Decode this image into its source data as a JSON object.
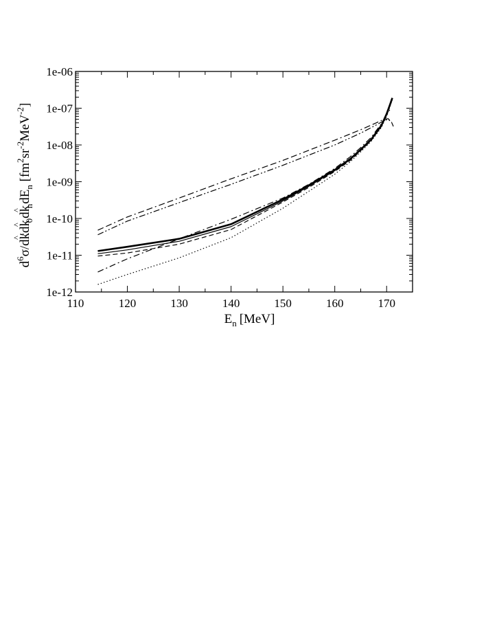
{
  "chart_data": {
    "type": "line",
    "title": "",
    "xlabel": {
      "base": "E",
      "sub": "n",
      "units": "[MeV]"
    },
    "ylabel": {
      "parts": [
        {
          "t": "d",
          "s": "n"
        },
        {
          "t": "6",
          "s": "sup"
        },
        {
          "t": "σ/d",
          "s": "n"
        },
        {
          "t": "k",
          "s": "n"
        },
        {
          "t": "^",
          "s": "hat"
        },
        {
          "t": "′d",
          "s": "n"
        },
        {
          "t": "k",
          "s": "n"
        },
        {
          "t": "^",
          "s": "hat"
        },
        {
          "t": "0",
          "s": "sub"
        },
        {
          "t": "d",
          "s": "n"
        },
        {
          "t": "k",
          "s": "n"
        },
        {
          "t": "^",
          "s": "hat"
        },
        {
          "t": "n",
          "s": "sub"
        },
        {
          "t": "dE",
          "s": "n"
        },
        {
          "t": "n",
          "s": "sub"
        },
        {
          "t": " [fm",
          "s": "n"
        },
        {
          "t": "2",
          "s": "sup"
        },
        {
          "t": "sr",
          "s": "n"
        },
        {
          "t": "-2",
          "s": "sup"
        },
        {
          "t": "MeV",
          "s": "n"
        },
        {
          "t": "-2",
          "s": "sup"
        },
        {
          "t": "]",
          "s": "n"
        }
      ]
    },
    "xlim": [
      110,
      175
    ],
    "ylim": [
      1e-12,
      1e-06
    ],
    "yscale": "log",
    "xticks": [
      110,
      120,
      130,
      140,
      150,
      160,
      170
    ],
    "xtick_labels": [
      "110",
      "120",
      "130",
      "140",
      "150",
      "160",
      "170"
    ],
    "yticks": [
      1e-12,
      1e-11,
      1e-10,
      1e-09,
      1e-08,
      1e-07,
      1e-06
    ],
    "ytick_labels": [
      "1e-12",
      "1e-11",
      "1e-10",
      "1e-09",
      "1e-08",
      "1e-07",
      "1e-06"
    ],
    "grid": false,
    "legend": "none",
    "series": [
      {
        "style": "solid-thick",
        "points": [
          [
            114.3,
            1.3e-11
          ],
          [
            120,
            1.7e-11
          ],
          [
            130,
            2.8e-11
          ],
          [
            140,
            7e-11
          ],
          [
            150,
            3.3e-10
          ],
          [
            155,
            8e-10
          ],
          [
            160,
            2.1e-09
          ],
          [
            163,
            4.2e-09
          ],
          [
            165,
            7.5e-09
          ],
          [
            167,
            1.4e-08
          ],
          [
            169,
            3.4e-08
          ],
          [
            170,
            7e-08
          ],
          [
            170.6,
            1.2e-07
          ],
          [
            171.1,
            1.9e-07
          ]
        ]
      },
      {
        "style": "solid-thin",
        "points": [
          [
            114.3,
            1.1e-11
          ],
          [
            120,
            1.4e-11
          ],
          [
            130,
            2.4e-11
          ],
          [
            140,
            6e-11
          ],
          [
            150,
            3e-10
          ],
          [
            155,
            7.5e-10
          ],
          [
            160,
            2e-09
          ],
          [
            163,
            4e-09
          ],
          [
            165,
            7.2e-09
          ],
          [
            167,
            1.35e-08
          ],
          [
            169,
            3.3e-08
          ],
          [
            170,
            6.8e-08
          ],
          [
            170.6,
            1.15e-07
          ],
          [
            171.1,
            1.8e-07
          ]
        ]
      },
      {
        "style": "dashed",
        "points": [
          [
            114.3,
            9.5e-12
          ],
          [
            120,
            1.15e-11
          ],
          [
            130,
            2e-11
          ],
          [
            140,
            5e-11
          ],
          [
            150,
            2.8e-10
          ],
          [
            155,
            7e-10
          ],
          [
            160,
            1.9e-09
          ],
          [
            163,
            3.8e-09
          ],
          [
            165,
            7e-09
          ],
          [
            167,
            1.3e-08
          ],
          [
            169,
            3.2e-08
          ],
          [
            170,
            6.5e-08
          ],
          [
            170.6,
            1.1e-07
          ],
          [
            171.1,
            1.75e-07
          ]
        ]
      },
      {
        "style": "dotted",
        "points": [
          [
            114.3,
            1.6e-12
          ],
          [
            120,
            3e-12
          ],
          [
            130,
            8.5e-12
          ],
          [
            140,
            3e-11
          ],
          [
            150,
            1.9e-10
          ],
          [
            155,
            5.5e-10
          ],
          [
            160,
            1.6e-09
          ],
          [
            163,
            3.5e-09
          ],
          [
            165,
            6.5e-09
          ],
          [
            167,
            1.25e-08
          ],
          [
            169,
            3e-08
          ],
          [
            170,
            6e-08
          ],
          [
            170.6,
            1.05e-07
          ],
          [
            171.1,
            1.7e-07
          ]
        ]
      },
      {
        "style": "dash-dot",
        "points": [
          [
            114.3,
            3.5e-12
          ],
          [
            120,
            8e-12
          ],
          [
            130,
            2.8e-11
          ],
          [
            140,
            9.5e-11
          ],
          [
            150,
            3.6e-10
          ],
          [
            155,
            8.5e-10
          ],
          [
            160,
            2.3e-09
          ],
          [
            163,
            4.8e-09
          ],
          [
            165,
            8.5e-09
          ],
          [
            167,
            1.6e-08
          ],
          [
            169,
            3.8e-08
          ],
          [
            170,
            6.5e-08
          ],
          [
            170.6,
            9e-08
          ]
        ]
      },
      {
        "style": "dash-dash-dot",
        "points": [
          [
            114.3,
            4.8e-11
          ],
          [
            120,
            1.1e-10
          ],
          [
            130,
            3.6e-10
          ],
          [
            140,
            1.2e-09
          ],
          [
            150,
            3.8e-09
          ],
          [
            160,
            1.35e-08
          ],
          [
            165,
            2.6e-08
          ],
          [
            168,
            4e-08
          ],
          [
            169.5,
            5e-08
          ],
          [
            170.3,
            5.2e-08
          ],
          [
            171,
            4e-08
          ],
          [
            171.3,
            3.2e-08
          ]
        ]
      },
      {
        "style": "dash-dot-dot",
        "points": [
          [
            114.3,
            3.6e-11
          ],
          [
            120,
            8.5e-11
          ],
          [
            130,
            2.7e-10
          ],
          [
            140,
            8.5e-10
          ],
          [
            150,
            2.8e-09
          ],
          [
            160,
            1e-08
          ],
          [
            165,
            2.1e-08
          ],
          [
            168,
            3.5e-08
          ],
          [
            169.5,
            4.6e-08
          ],
          [
            170.3,
            5e-08
          ],
          [
            171,
            4.1e-08
          ]
        ]
      }
    ]
  }
}
